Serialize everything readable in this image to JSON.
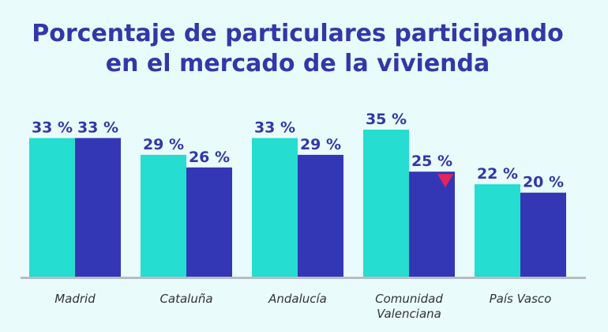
{
  "title_lines": [
    "Porcentaje de particulares participando",
    "en el mercado de la vivienda"
  ],
  "colors": {
    "background": "#e9fbfb",
    "title": "#3337a8",
    "series_1": "#25ddd0",
    "series_2": "#3337b5",
    "axis": "#b8bcc4",
    "decrease_marker": "#e0245e"
  },
  "chart_data": {
    "type": "bar",
    "categories": [
      [
        "Madrid"
      ],
      [
        "Cataluña"
      ],
      [
        "Andalucía"
      ],
      [
        "Comunidad",
        "Valenciana"
      ],
      [
        "País Vasco"
      ]
    ],
    "series": [
      {
        "values": [
          33,
          29,
          33,
          35,
          22
        ],
        "labels": [
          "33 %",
          "29 %",
          "33 %",
          "35 %",
          "22 %"
        ],
        "color": "#25ddd0"
      },
      {
        "values": [
          33,
          26,
          29,
          25,
          20
        ],
        "labels": [
          "33 %",
          "26 %",
          "29 %",
          "25 %",
          "20 %"
        ],
        "color": "#3337b5"
      }
    ],
    "ylim": [
      0,
      35
    ],
    "grid": false,
    "legend": "none",
    "decrease_marker": {
      "series": 1,
      "category": 3,
      "icon": "down-triangle-icon"
    }
  }
}
